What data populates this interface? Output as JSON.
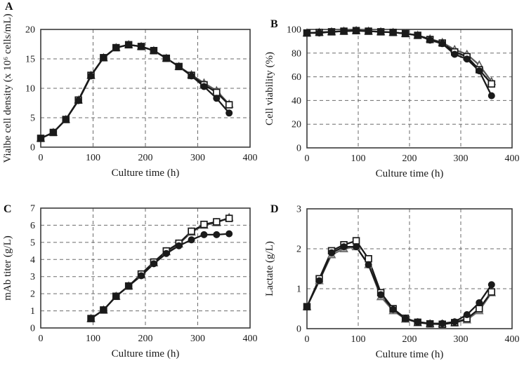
{
  "panels": [
    {
      "label": "A"
    },
    {
      "label": "B"
    },
    {
      "label": "C"
    },
    {
      "label": "D"
    }
  ],
  "colors": {
    "line_black": "#1a1a1a",
    "line_gray": "#6e6e6e",
    "grid": "#6b6b6b",
    "frame": "#3a3a3a"
  },
  "chart_data": [
    {
      "type": "line",
      "panel": "A",
      "xlabel": "Culture time (h)",
      "ylabel": "Vialbe cell density (x 10⁶ cells/mL)",
      "xlim": [
        0,
        400
      ],
      "ylim": [
        0,
        20
      ],
      "xticks": [
        0,
        100,
        200,
        300,
        400
      ],
      "yticks": [
        0,
        5,
        10,
        15,
        20
      ],
      "grid": "dashed",
      "legend": "none",
      "x": [
        0,
        24,
        48,
        72,
        96,
        120,
        144,
        168,
        192,
        216,
        240,
        264,
        288,
        312,
        336,
        360
      ],
      "series": [
        {
          "name": "open-triangle",
          "marker": "triangle",
          "marker_fill": "#ffffff",
          "color": "#5a5a5a",
          "values": [
            1.5,
            2.5,
            4.7,
            8.0,
            12.2,
            15.2,
            16.9,
            17.4,
            17.1,
            16.4,
            15.1,
            13.7,
            12.3,
            10.9,
            9.6,
            7.3
          ]
        },
        {
          "name": "open-square",
          "marker": "square",
          "marker_fill": "#ffffff",
          "color": "#1a1a1a",
          "values": [
            1.5,
            2.5,
            4.7,
            8.0,
            12.2,
            15.2,
            16.9,
            17.4,
            17.1,
            16.4,
            15.1,
            13.7,
            12.2,
            10.6,
            9.3,
            7.2
          ]
        },
        {
          "name": "filled-circle",
          "marker": "circle",
          "marker_fill": "#1a1a1a",
          "color": "#1a1a1a",
          "values": [
            1.5,
            2.5,
            4.7,
            7.9,
            12.1,
            15.2,
            16.9,
            17.4,
            17.1,
            16.4,
            15.1,
            13.7,
            12.1,
            10.3,
            8.3,
            5.8
          ]
        }
      ]
    },
    {
      "type": "line",
      "panel": "B",
      "xlabel": "Culture time (h)",
      "ylabel": "Cell viability (%)",
      "xlim": [
        0,
        400
      ],
      "ylim": [
        0,
        100
      ],
      "xticks": [
        0,
        100,
        200,
        300,
        400
      ],
      "yticks": [
        0,
        20,
        40,
        60,
        80,
        100
      ],
      "grid": "dashed",
      "legend": "none",
      "x": [
        0,
        24,
        48,
        72,
        96,
        120,
        144,
        168,
        192,
        216,
        240,
        264,
        288,
        312,
        336,
        360
      ],
      "series": [
        {
          "name": "open-triangle",
          "marker": "triangle",
          "marker_fill": "#ffffff",
          "color": "#5a5a5a",
          "values": [
            97,
            97.5,
            98,
            98.5,
            99,
            98.5,
            98,
            97.5,
            96.5,
            95,
            92,
            89,
            83,
            79,
            70,
            56
          ]
        },
        {
          "name": "open-square",
          "marker": "square",
          "marker_fill": "#ffffff",
          "color": "#1a1a1a",
          "values": [
            97,
            97.5,
            98,
            98.5,
            99,
            98.5,
            98,
            97.5,
            96.5,
            95,
            91.5,
            88.5,
            81,
            77,
            66,
            54
          ]
        },
        {
          "name": "filled-circle",
          "marker": "circle",
          "marker_fill": "#1a1a1a",
          "color": "#1a1a1a",
          "values": [
            97,
            97,
            98,
            98.5,
            99,
            98.5,
            98,
            97.5,
            96.5,
            95,
            91,
            88,
            79,
            75,
            65,
            44
          ]
        }
      ]
    },
    {
      "type": "line",
      "panel": "C",
      "xlabel": "Culture time (h)",
      "ylabel": "mAb titer (g/L)",
      "xlim": [
        0,
        400
      ],
      "ylim": [
        0,
        7
      ],
      "xticks": [
        0,
        100,
        200,
        300,
        400
      ],
      "yticks": [
        0,
        1,
        2,
        3,
        4,
        5,
        6,
        7
      ],
      "grid": "dashed",
      "legend": "none",
      "x": [
        96,
        120,
        144,
        168,
        192,
        216,
        240,
        264,
        288,
        312,
        336,
        360
      ],
      "series": [
        {
          "name": "open-triangle",
          "marker": "triangle",
          "marker_fill": "#ffffff",
          "color": "#5a5a5a",
          "values": [
            0.55,
            1.05,
            1.85,
            2.45,
            3.1,
            3.8,
            4.45,
            4.9,
            5.6,
            6.0,
            6.15,
            6.45
          ]
        },
        {
          "name": "open-square",
          "marker": "square",
          "marker_fill": "#ffffff",
          "color": "#1a1a1a",
          "values": [
            0.55,
            1.05,
            1.85,
            2.45,
            3.15,
            3.85,
            4.5,
            4.95,
            5.65,
            6.05,
            6.2,
            6.4
          ]
        },
        {
          "name": "filled-circle",
          "marker": "circle",
          "marker_fill": "#1a1a1a",
          "color": "#1a1a1a",
          "values": [
            0.55,
            1.05,
            1.85,
            2.45,
            3.05,
            3.75,
            4.35,
            4.8,
            5.15,
            5.45,
            5.45,
            5.5
          ]
        }
      ]
    },
    {
      "type": "line",
      "panel": "D",
      "xlabel": "Culture time (h)",
      "ylabel": "Lactate (g/L)",
      "xlim": [
        0,
        400
      ],
      "ylim": [
        0,
        3
      ],
      "xticks": [
        0,
        100,
        200,
        300,
        400
      ],
      "yticks": [
        0,
        1,
        2,
        3
      ],
      "grid": "dashed",
      "legend": "none",
      "x": [
        0,
        24,
        48,
        72,
        96,
        120,
        144,
        168,
        192,
        216,
        240,
        264,
        288,
        312,
        336,
        360
      ],
      "series": [
        {
          "name": "gray-triangle",
          "marker": "triangle",
          "marker_fill": "#aaaaaa",
          "color": "#6e6e6e",
          "values": [
            0.55,
            1.2,
            1.85,
            2.0,
            2.05,
            1.6,
            0.8,
            0.45,
            0.24,
            0.15,
            0.12,
            0.12,
            0.15,
            0.22,
            0.45,
            0.9
          ]
        },
        {
          "name": "open-square",
          "marker": "square",
          "marker_fill": "#ffffff",
          "color": "#1a1a1a",
          "values": [
            0.55,
            1.25,
            1.95,
            2.1,
            2.2,
            1.75,
            0.9,
            0.5,
            0.26,
            0.16,
            0.12,
            0.11,
            0.15,
            0.25,
            0.5,
            0.92
          ]
        },
        {
          "name": "filled-circle",
          "marker": "circle",
          "marker_fill": "#1a1a1a",
          "color": "#1a1a1a",
          "values": [
            0.55,
            1.2,
            1.9,
            2.05,
            2.05,
            1.6,
            0.85,
            0.48,
            0.25,
            0.17,
            0.13,
            0.13,
            0.17,
            0.35,
            0.65,
            1.1
          ]
        }
      ]
    }
  ]
}
